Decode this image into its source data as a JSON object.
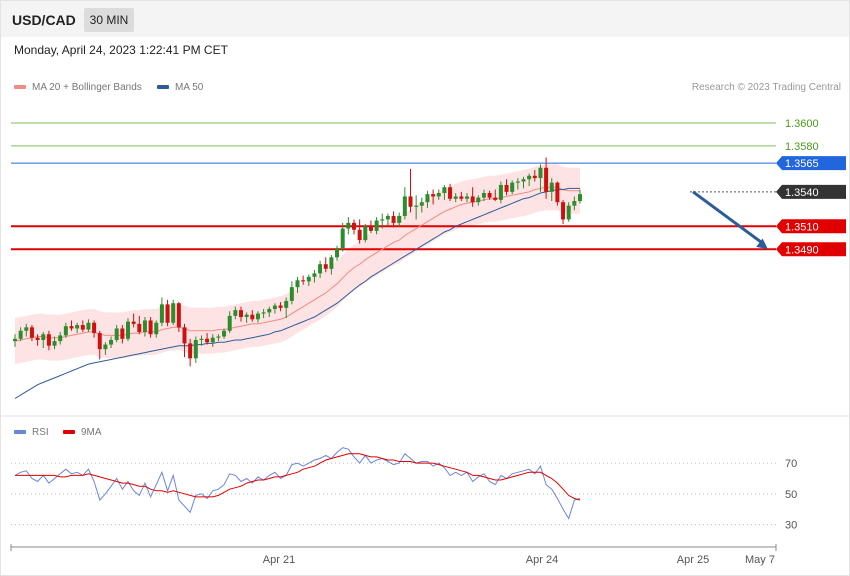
{
  "header": {
    "symbol": "USD/CAD",
    "timeframe": "30 MIN",
    "datetime": "Monday, April 24, 2023 1:22:41 PM CET"
  },
  "legend": {
    "ma20": {
      "label": "MA 20 + Bollinger Bands",
      "color": "#f28b82"
    },
    "ma50": {
      "label": "MA 50",
      "color": "#2e5c99"
    },
    "credit": "Research © 2023 Trading Central"
  },
  "rsi_legend": {
    "rsi": {
      "label": "RSI",
      "color": "#6b86d8"
    },
    "ma9": {
      "label": "9MA",
      "color": "#e00000"
    }
  },
  "colors": {
    "bull": "#2e8b2e",
    "bear": "#cc1111",
    "band": "#fcdcdc",
    "resistance": "#7fbf5f",
    "pivot": "#2266dd",
    "support": "#e00000",
    "current": "#333333",
    "arrow": "#2e5c99"
  },
  "chart_data": [
    {
      "type": "candlestick",
      "ylim": [
        1.335,
        1.362
      ],
      "x_ticks": [
        "Apr 21",
        "Apr 24",
        "Apr 25",
        "May 7"
      ],
      "levels": [
        {
          "value": "1.3600",
          "kind": "resistance"
        },
        {
          "value": "1.3580",
          "kind": "resistance"
        },
        {
          "value": "1.3565",
          "kind": "pivot"
        },
        {
          "value": "1.3540",
          "kind": "current"
        },
        {
          "value": "1.3510",
          "kind": "support"
        },
        {
          "value": "1.3490",
          "kind": "support"
        }
      ],
      "forecast_arrow": {
        "from": 1.354,
        "to": 1.349
      },
      "candles": [
        [
          1.341,
          1.3416,
          1.3405,
          1.3412
        ],
        [
          1.3412,
          1.3422,
          1.341,
          1.3419
        ],
        [
          1.3419,
          1.3425,
          1.3414,
          1.3422
        ],
        [
          1.3422,
          1.3424,
          1.341,
          1.3413
        ],
        [
          1.3413,
          1.3416,
          1.3406,
          1.3411
        ],
        [
          1.3411,
          1.3418,
          1.3404,
          1.3416
        ],
        [
          1.3416,
          1.3419,
          1.3402,
          1.3406
        ],
        [
          1.3406,
          1.3414,
          1.3403,
          1.341
        ],
        [
          1.341,
          1.3418,
          1.3407,
          1.3415
        ],
        [
          1.3415,
          1.3426,
          1.3413,
          1.3423
        ],
        [
          1.3423,
          1.3428,
          1.3419,
          1.3421
        ],
        [
          1.3421,
          1.3426,
          1.3417,
          1.3424
        ],
        [
          1.3424,
          1.3428,
          1.3418,
          1.342
        ],
        [
          1.342,
          1.3429,
          1.3418,
          1.3426
        ],
        [
          1.3426,
          1.3428,
          1.3413,
          1.3417
        ],
        [
          1.3417,
          1.3419,
          1.3394,
          1.3403
        ],
        [
          1.3403,
          1.3409,
          1.3398,
          1.3407
        ],
        [
          1.3407,
          1.3414,
          1.3404,
          1.3411
        ],
        [
          1.3411,
          1.3424,
          1.3409,
          1.3421
        ],
        [
          1.3421,
          1.3424,
          1.3408,
          1.3412
        ],
        [
          1.3412,
          1.343,
          1.341,
          1.3427
        ],
        [
          1.3427,
          1.3434,
          1.3422,
          1.3425
        ],
        [
          1.3425,
          1.3432,
          1.3416,
          1.3418
        ],
        [
          1.3418,
          1.3431,
          1.3414,
          1.3428
        ],
        [
          1.3428,
          1.3431,
          1.3413,
          1.3416
        ],
        [
          1.3416,
          1.3428,
          1.3413,
          1.3426
        ],
        [
          1.3426,
          1.3448,
          1.3423,
          1.3442
        ],
        [
          1.3442,
          1.3446,
          1.3423,
          1.3426
        ],
        [
          1.3426,
          1.3446,
          1.3424,
          1.3443
        ],
        [
          1.3443,
          1.3444,
          1.3418,
          1.3422
        ],
        [
          1.3422,
          1.3425,
          1.3396,
          1.3408
        ],
        [
          1.3408,
          1.3412,
          1.3388,
          1.3395
        ],
        [
          1.3395,
          1.3414,
          1.3391,
          1.3411
        ],
        [
          1.3411,
          1.3415,
          1.3406,
          1.3412
        ],
        [
          1.3412,
          1.3417,
          1.3407,
          1.3409
        ],
        [
          1.3409,
          1.3416,
          1.3405,
          1.3413
        ],
        [
          1.3413,
          1.3416,
          1.341,
          1.3414
        ],
        [
          1.3414,
          1.3421,
          1.3412,
          1.3419
        ],
        [
          1.3419,
          1.3436,
          1.3417,
          1.3432
        ],
        [
          1.3432,
          1.344,
          1.3429,
          1.3437
        ],
        [
          1.3437,
          1.344,
          1.3427,
          1.3431
        ],
        [
          1.3431,
          1.3435,
          1.3426,
          1.3433
        ],
        [
          1.3433,
          1.3437,
          1.3427,
          1.3429
        ],
        [
          1.3429,
          1.3436,
          1.3426,
          1.3434
        ],
        [
          1.3434,
          1.3438,
          1.343,
          1.3435
        ],
        [
          1.3435,
          1.344,
          1.3431,
          1.3438
        ],
        [
          1.3438,
          1.3443,
          1.3434,
          1.3441
        ],
        [
          1.3441,
          1.3444,
          1.3436,
          1.3439
        ],
        [
          1.3439,
          1.3448,
          1.343,
          1.3445
        ],
        [
          1.3445,
          1.3462,
          1.3442,
          1.3457
        ],
        [
          1.3457,
          1.3466,
          1.3452,
          1.3463
        ],
        [
          1.3463,
          1.3467,
          1.3459,
          1.3462
        ],
        [
          1.3462,
          1.3468,
          1.3458,
          1.3466
        ],
        [
          1.3466,
          1.3472,
          1.3461,
          1.3469
        ],
        [
          1.3469,
          1.348,
          1.3465,
          1.3477
        ],
        [
          1.3477,
          1.3483,
          1.347,
          1.3473
        ],
        [
          1.3473,
          1.3485,
          1.3468,
          1.3483
        ],
        [
          1.3483,
          1.3493,
          1.348,
          1.3491
        ],
        [
          1.3491,
          1.3513,
          1.3488,
          1.3508
        ],
        [
          1.3508,
          1.3518,
          1.3503,
          1.3513
        ],
        [
          1.3513,
          1.3516,
          1.3503,
          1.3507
        ],
        [
          1.3507,
          1.3516,
          1.3495,
          1.3498
        ],
        [
          1.3498,
          1.3512,
          1.3496,
          1.351
        ],
        [
          1.351,
          1.3515,
          1.3504,
          1.3506
        ],
        [
          1.3506,
          1.3518,
          1.3503,
          1.3515
        ],
        [
          1.3515,
          1.3521,
          1.3508,
          1.3516
        ],
        [
          1.3516,
          1.3521,
          1.351,
          1.3519
        ],
        [
          1.3519,
          1.3523,
          1.3509,
          1.3513
        ],
        [
          1.3513,
          1.3522,
          1.351,
          1.3519
        ],
        [
          1.3519,
          1.3544,
          1.3516,
          1.3536
        ],
        [
          1.3536,
          1.356,
          1.3522,
          1.3527
        ],
        [
          1.3527,
          1.3537,
          1.3516,
          1.3528
        ],
        [
          1.3528,
          1.3535,
          1.3522,
          1.3531
        ],
        [
          1.3531,
          1.3541,
          1.3526,
          1.3538
        ],
        [
          1.3538,
          1.3542,
          1.3529,
          1.3536
        ],
        [
          1.3536,
          1.3542,
          1.3533,
          1.3539
        ],
        [
          1.3539,
          1.3546,
          1.3533,
          1.3544
        ],
        [
          1.3544,
          1.3547,
          1.3532,
          1.3534
        ],
        [
          1.3534,
          1.3539,
          1.3531,
          1.3536
        ],
        [
          1.3536,
          1.354,
          1.3532,
          1.3534
        ],
        [
          1.3534,
          1.3539,
          1.3531,
          1.3536
        ],
        [
          1.3536,
          1.3544,
          1.3527,
          1.3531
        ],
        [
          1.3531,
          1.3537,
          1.3528,
          1.3535
        ],
        [
          1.3535,
          1.3542,
          1.3532,
          1.3539
        ],
        [
          1.3539,
          1.3541,
          1.3533,
          1.3535
        ],
        [
          1.3535,
          1.3542,
          1.3532,
          1.3533
        ],
        [
          1.3533,
          1.3549,
          1.353,
          1.3546
        ],
        [
          1.3546,
          1.3551,
          1.3537,
          1.354
        ],
        [
          1.354,
          1.355,
          1.3538,
          1.3548
        ],
        [
          1.3548,
          1.3552,
          1.3542,
          1.3549
        ],
        [
          1.3549,
          1.3553,
          1.3543,
          1.3551
        ],
        [
          1.3551,
          1.3556,
          1.3545,
          1.3554
        ],
        [
          1.3554,
          1.3559,
          1.3549,
          1.3552
        ],
        [
          1.3552,
          1.3564,
          1.354,
          1.3561
        ],
        [
          1.3561,
          1.357,
          1.3534,
          1.354
        ],
        [
          1.354,
          1.3552,
          1.3532,
          1.3548
        ],
        [
          1.3548,
          1.3549,
          1.3528,
          1.3531
        ],
        [
          1.3531,
          1.3533,
          1.3512,
          1.3516
        ],
        [
          1.3516,
          1.3531,
          1.3514,
          1.3528
        ],
        [
          1.3528,
          1.3536,
          1.3524,
          1.3532
        ],
        [
          1.3532,
          1.3542,
          1.353,
          1.3538
        ]
      ],
      "ma20": [
        1.341,
        1.3411,
        1.3412,
        1.3413,
        1.3414,
        1.3414,
        1.3413,
        1.3413,
        1.3413,
        1.3414,
        1.3415,
        1.3416,
        1.3417,
        1.3418,
        1.3418,
        1.3416,
        1.3415,
        1.3415,
        1.3415,
        1.3415,
        1.3416,
        1.3417,
        1.3417,
        1.3418,
        1.3418,
        1.3418,
        1.342,
        1.3421,
        1.3422,
        1.3422,
        1.3421,
        1.3419,
        1.3419,
        1.3419,
        1.3419,
        1.3419,
        1.342,
        1.342,
        1.3421,
        1.3422,
        1.3423,
        1.3424,
        1.3425,
        1.3425,
        1.3426,
        1.3427,
        1.3428,
        1.3429,
        1.3431,
        1.3434,
        1.3437,
        1.344,
        1.3443,
        1.3446,
        1.3449,
        1.3452,
        1.3456,
        1.346,
        1.3465,
        1.347,
        1.3474,
        1.3477,
        1.3481,
        1.3484,
        1.3487,
        1.349,
        1.3493,
        1.3496,
        1.3498,
        1.3502,
        1.3505,
        1.3508,
        1.3511,
        1.3514,
        1.3517,
        1.352,
        1.3523,
        1.3525,
        1.3527,
        1.3529,
        1.353,
        1.3531,
        1.3532,
        1.3533,
        1.3534,
        1.3534,
        1.3535,
        1.3536,
        1.3537,
        1.3538,
        1.3539,
        1.354,
        1.3542,
        1.3543,
        1.3544,
        1.3544,
        1.3544,
        1.3542,
        1.3541,
        1.3541,
        1.3541
      ],
      "ma50": [
        1.336,
        1.3363,
        1.3366,
        1.3369,
        1.3372,
        1.3374,
        1.3376,
        1.3378,
        1.338,
        1.3382,
        1.3384,
        1.3386,
        1.3388,
        1.339,
        1.3391,
        1.3392,
        1.3393,
        1.3394,
        1.3395,
        1.3396,
        1.3397,
        1.3398,
        1.3399,
        1.34,
        1.3401,
        1.3402,
        1.3403,
        1.3404,
        1.3405,
        1.3406,
        1.3406,
        1.3406,
        1.3407,
        1.3407,
        1.3408,
        1.3408,
        1.3409,
        1.3409,
        1.341,
        1.3411,
        1.3411,
        1.3412,
        1.3413,
        1.3414,
        1.3415,
        1.3416,
        1.3418,
        1.3419,
        1.3421,
        1.3423,
        1.3425,
        1.3427,
        1.3429,
        1.3431,
        1.3434,
        1.3437,
        1.344,
        1.3443,
        1.3447,
        1.3451,
        1.3455,
        1.3459,
        1.3462,
        1.3466,
        1.3469,
        1.3472,
        1.3475,
        1.3478,
        1.3481,
        1.3484,
        1.3487,
        1.349,
        1.3493,
        1.3496,
        1.3499,
        1.3502,
        1.3505,
        1.3507,
        1.351,
        1.3512,
        1.3514,
        1.3516,
        1.3518,
        1.352,
        1.3522,
        1.3524,
        1.3526,
        1.3528,
        1.353,
        1.3532,
        1.3534,
        1.3535,
        1.3537,
        1.3539,
        1.354,
        1.3541,
        1.3542,
        1.3542,
        1.3543,
        1.3543,
        1.3543
      ],
      "bb_width": 0.002
    },
    {
      "type": "line",
      "ylim": [
        20,
        85
      ],
      "y_ticks": [
        "70",
        "50",
        "30"
      ],
      "series_labels": [
        "RSI",
        "9MA"
      ],
      "rsi": [
        62,
        64,
        65,
        60,
        58,
        62,
        57,
        60,
        63,
        66,
        63,
        64,
        62,
        66,
        58,
        46,
        50,
        55,
        60,
        53,
        58,
        52,
        49,
        57,
        48,
        56,
        64,
        52,
        62,
        46,
        42,
        38,
        49,
        50,
        47,
        52,
        53,
        56,
        63,
        62,
        58,
        60,
        57,
        61,
        59,
        62,
        64,
        60,
        62,
        69,
        70,
        68,
        70,
        72,
        73,
        75,
        73,
        77,
        80,
        79,
        74,
        70,
        75,
        70,
        72,
        73,
        71,
        69,
        70,
        76,
        73,
        70,
        71,
        71,
        68,
        70,
        67,
        62,
        64,
        62,
        64,
        58,
        61,
        63,
        58,
        56,
        62,
        60,
        63,
        64,
        65,
        66,
        63,
        68,
        56,
        53,
        47,
        40,
        34,
        46,
        47
      ],
      "ma9": [
        62,
        62,
        62,
        62,
        62,
        62,
        62,
        62,
        61,
        61,
        62,
        62,
        62,
        63,
        62,
        61,
        60,
        59,
        58,
        57,
        57,
        56,
        55,
        55,
        53,
        52,
        52,
        51,
        52,
        51,
        50,
        49,
        48,
        48,
        48,
        48,
        49,
        51,
        53,
        54,
        55,
        57,
        58,
        59,
        59,
        60,
        61,
        61,
        62,
        63,
        64,
        66,
        67,
        68,
        70,
        72,
        73,
        74,
        75,
        76,
        76,
        76,
        75,
        74,
        74,
        73,
        72,
        72,
        71,
        71,
        71,
        70,
        70,
        70,
        70,
        69,
        68,
        67,
        66,
        65,
        64,
        62,
        62,
        61,
        60,
        59,
        59,
        60,
        61,
        62,
        63,
        64,
        64,
        64,
        62,
        60,
        57,
        53,
        49,
        47,
        46
      ]
    }
  ]
}
